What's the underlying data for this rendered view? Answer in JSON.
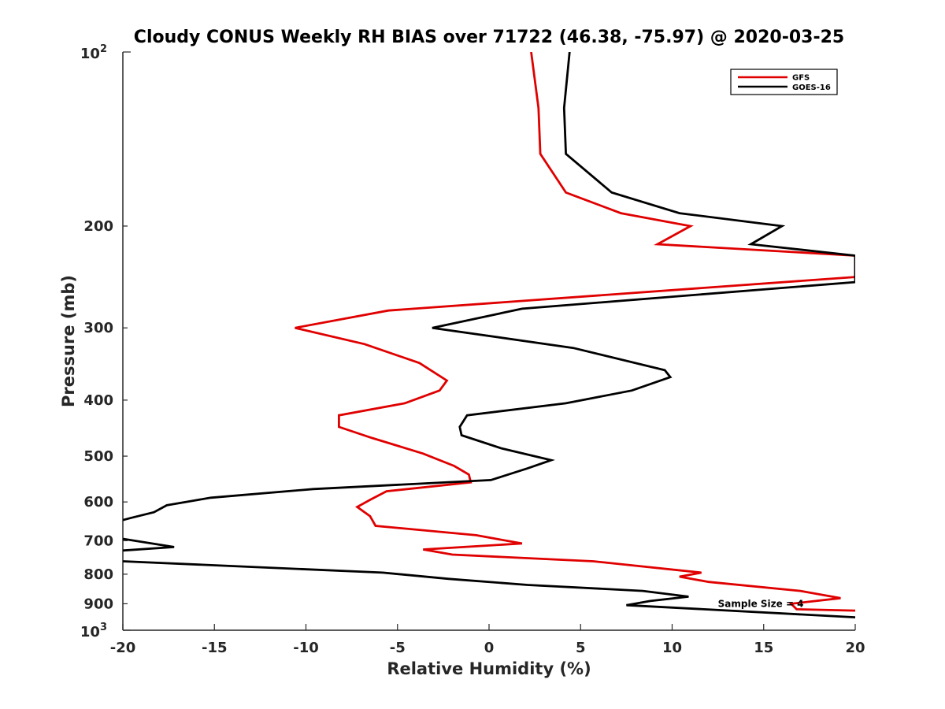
{
  "chart_data": {
    "type": "line",
    "title": "Cloudy CONUS Weekly RH BIAS over 71722 (46.38, -75.97) @ 2020-03-25",
    "xlabel": "Relative Humidity (%)",
    "ylabel": "Pressure (mb)",
    "xlim": [
      -20,
      20
    ],
    "ylim": [
      100,
      1000
    ],
    "yscale": "log",
    "y_reversed": true,
    "grid": false,
    "legend_position": "top-right",
    "xticks": [
      -20,
      -15,
      -10,
      -5,
      0,
      5,
      10,
      15,
      20
    ],
    "xtick_labels": [
      "-20",
      "-15",
      "-10",
      "-5",
      "0",
      "5",
      "10",
      "15",
      "20"
    ],
    "yticks": [
      200,
      300,
      400,
      500,
      600,
      700,
      800,
      900
    ],
    "ytick_labels": [
      "200",
      "300",
      "400",
      "500",
      "600",
      "700",
      "800",
      "900"
    ],
    "ytick_top": {
      "base": "10",
      "exp": "2"
    },
    "ytick_bottom": {
      "base": "10",
      "exp": "3"
    },
    "series": [
      {
        "name": "GFS",
        "color": "#e00000",
        "points": [
          [
            2.3,
            100
          ],
          [
            2.7,
            125
          ],
          [
            2.8,
            150
          ],
          [
            4.2,
            175
          ],
          [
            7.2,
            190
          ],
          [
            11.0,
            200
          ],
          [
            9.2,
            215
          ],
          [
            20.0,
            225
          ],
          [
            20.0,
            245
          ],
          [
            -5.5,
            280
          ],
          [
            -10.6,
            300
          ],
          [
            -6.8,
            320
          ],
          [
            -3.8,
            345
          ],
          [
            -2.3,
            370
          ],
          [
            -2.7,
            385
          ],
          [
            -4.6,
            405
          ],
          [
            -8.2,
            425
          ],
          [
            -8.2,
            445
          ],
          [
            -6.4,
            465
          ],
          [
            -3.6,
            495
          ],
          [
            -1.9,
            520
          ],
          [
            -1.1,
            538
          ],
          [
            -1.0,
            555
          ],
          [
            -5.6,
            575
          ],
          [
            -6.5,
            595
          ],
          [
            -7.2,
            612
          ],
          [
            -6.5,
            635
          ],
          [
            -6.2,
            660
          ],
          [
            -0.7,
            685
          ],
          [
            1.8,
            708
          ],
          [
            -3.6,
            725
          ],
          [
            -2.0,
            740
          ],
          [
            5.7,
            760
          ],
          [
            11.6,
            795
          ],
          [
            10.4,
            808
          ],
          [
            12.0,
            825
          ],
          [
            17.0,
            855
          ],
          [
            19.2,
            880
          ],
          [
            16.5,
            900
          ],
          [
            16.8,
            920
          ],
          [
            20.0,
            925
          ]
        ]
      },
      {
        "name": "GOES-16",
        "color": "#000000",
        "points": [
          [
            4.4,
            100
          ],
          [
            4.1,
            125
          ],
          [
            4.2,
            150
          ],
          [
            6.7,
            175
          ],
          [
            10.4,
            190
          ],
          [
            16.0,
            200
          ],
          [
            14.3,
            215
          ],
          [
            20.0,
            225
          ],
          [
            20.0,
            250
          ],
          [
            1.8,
            278
          ],
          [
            -3.1,
            300
          ],
          [
            4.6,
            325
          ],
          [
            9.6,
            355
          ],
          [
            9.9,
            365
          ],
          [
            7.8,
            385
          ],
          [
            4.2,
            405
          ],
          [
            -1.2,
            425
          ],
          [
            -1.6,
            445
          ],
          [
            -1.5,
            460
          ],
          [
            0.7,
            485
          ],
          [
            3.4,
            508
          ],
          [
            2.1,
            525
          ],
          [
            0.1,
            550
          ],
          [
            -9.6,
            570
          ],
          [
            -15.2,
            590
          ],
          [
            -17.6,
            608
          ],
          [
            -18.3,
            625
          ],
          [
            -19.6,
            640
          ],
          [
            -20.0,
            645
          ]
        ],
        "segments_2": [
          [
            -20.0,
            695
          ],
          [
            -17.2,
            718
          ],
          [
            -20.0,
            728
          ]
        ],
        "segments_3": [
          [
            -20.0,
            760
          ],
          [
            -5.8,
            795
          ],
          [
            -2.2,
            815
          ],
          [
            2.1,
            835
          ],
          [
            8.4,
            855
          ],
          [
            10.9,
            875
          ],
          [
            8.8,
            890
          ],
          [
            7.5,
            905
          ],
          [
            20.0,
            950
          ]
        ]
      }
    ],
    "annotations": [
      {
        "text": "Sample Size = 4",
        "x": 12.5,
        "y": 900
      }
    ]
  }
}
